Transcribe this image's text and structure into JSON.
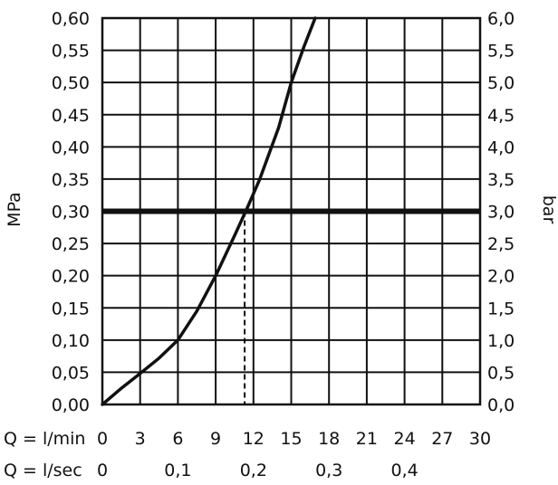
{
  "chart_data": {
    "type": "line",
    "xlim": [
      0,
      30
    ],
    "ylim": [
      0,
      0.6
    ],
    "grid": true,
    "left_axis_label": "MPa",
    "right_axis_label": "bar",
    "left_ticks": [
      "0,00",
      "0,05",
      "0,10",
      "0,15",
      "0,20",
      "0,25",
      "0,30",
      "0,35",
      "0,40",
      "0,45",
      "0,50",
      "0,55",
      "0,60"
    ],
    "right_ticks": [
      "0,0",
      "0,5",
      "1,0",
      "1,5",
      "2,0",
      "2,5",
      "3,0",
      "3,5",
      "4,0",
      "4,5",
      "5,0",
      "5,5",
      "6,0"
    ],
    "x_row1_label": "Q = l/min",
    "x_row1_values": [
      0,
      3,
      6,
      9,
      12,
      15,
      18,
      21,
      24,
      27,
      30
    ],
    "x_row1_ticks": [
      "0",
      "3",
      "6",
      "9",
      "12",
      "15",
      "18",
      "21",
      "24",
      "27",
      "30"
    ],
    "x_row2_label": "Q = l/sec",
    "x_row2_values": [
      0,
      6,
      12,
      18,
      24
    ],
    "x_row2_ticks": [
      "0",
      "0,1",
      "0,2",
      "0,3",
      "0,4"
    ],
    "series": [
      {
        "x": [
          0,
          1.5,
          3,
          4.5,
          6,
          7.5,
          9,
          10.5,
          11.5,
          12.5,
          14,
          15,
          16,
          16.9
        ],
        "y": [
          0,
          0.025,
          0.048,
          0.072,
          0.1,
          0.145,
          0.2,
          0.262,
          0.305,
          0.35,
          0.43,
          0.5,
          0.555,
          0.6
        ]
      }
    ],
    "reference_line": {
      "y": 0.3
    },
    "reference_drop_x": 11.3
  }
}
